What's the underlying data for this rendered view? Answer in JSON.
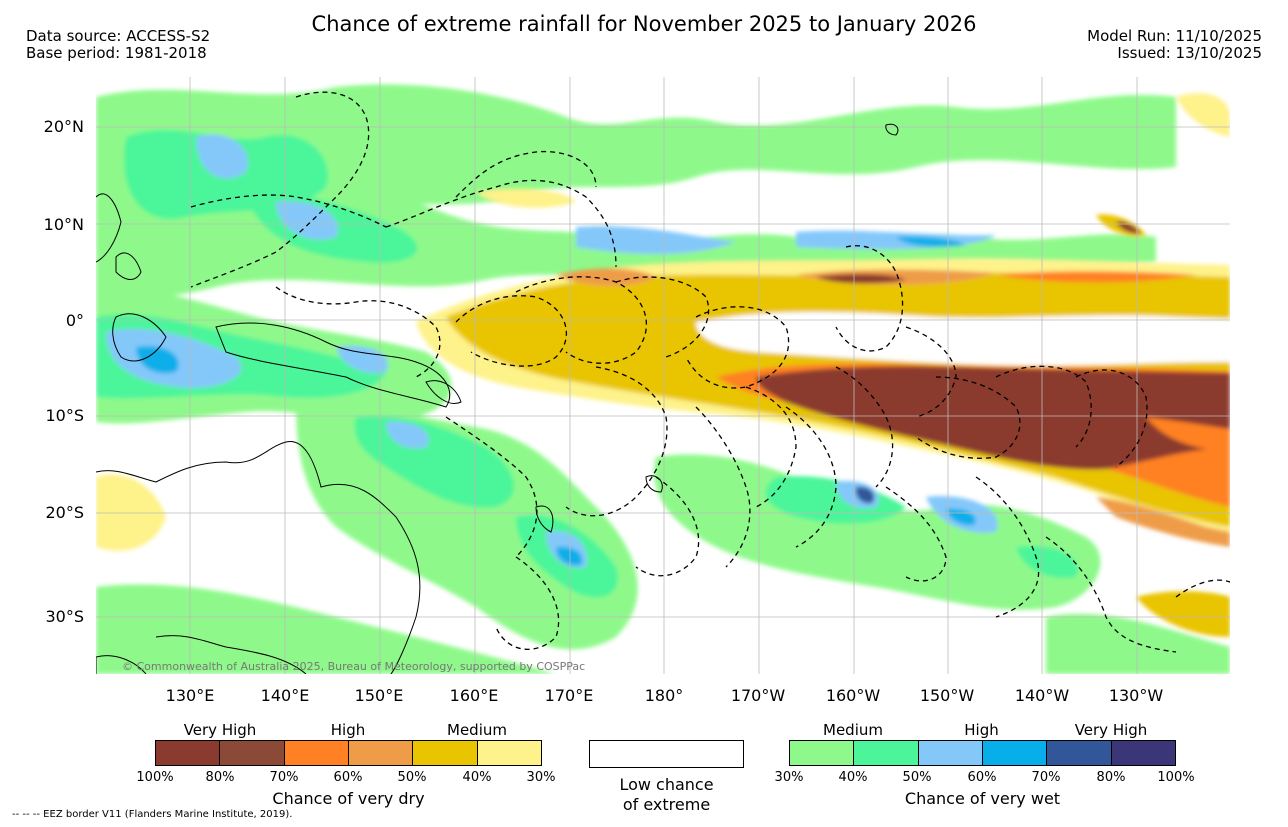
{
  "title": "Chance of extreme rainfall for November 2025 to January 2026",
  "meta_left": {
    "source": "Data source: ACCESS-S2",
    "base": "Base period: 1981-2018"
  },
  "meta_right": {
    "model_run": "Model Run: 11/10/2025",
    "issued": "Issued: 13/10/2025"
  },
  "map": {
    "lat_labels": [
      "20°N",
      "10°N",
      "0°",
      "10°S",
      "20°S",
      "30°S"
    ],
    "lon_labels": [
      "130°E",
      "140°E",
      "150°E",
      "160°E",
      "170°E",
      "180°",
      "170°W",
      "160°W",
      "150°W",
      "140°W",
      "130°W"
    ],
    "copyright": "© Commonwealth of Australia 2025, Bureau of Meteorology, supported by COSPPac"
  },
  "dry_legend": {
    "categories": [
      "Very High",
      "High",
      "Medium"
    ],
    "colors": [
      "#8b3a2f",
      "#8b4a38",
      "#ff8124",
      "#ef9c48",
      "#e9c400",
      "#fef28a"
    ],
    "ticks": [
      "100%",
      "80%",
      "70%",
      "60%",
      "50%",
      "40%",
      "30%"
    ],
    "caption": "Chance of very dry"
  },
  "low_legend": {
    "line1": "Low chance",
    "line2": "of extreme"
  },
  "wet_legend": {
    "categories": [
      "Medium",
      "High",
      "Very High"
    ],
    "colors": [
      "#8ef98a",
      "#4cf59a",
      "#84c8fa",
      "#08aeea",
      "#31579a",
      "#3b3678"
    ],
    "ticks": [
      "30%",
      "40%",
      "50%",
      "60%",
      "70%",
      "80%",
      "100%"
    ],
    "caption": "Chance of very wet"
  },
  "footnote": "-- -- -- EEZ border V11 (Flanders Marine Institute, 2019).",
  "palette": {
    "dark_dry": "#8b3a2f",
    "orange": "#ff8124",
    "gold": "#e9c400",
    "pale_yellow": "#fef28a",
    "light_green": "#8ef98a",
    "mint": "#4cf59a",
    "sky": "#84c8fa",
    "cyan": "#08aeea"
  }
}
